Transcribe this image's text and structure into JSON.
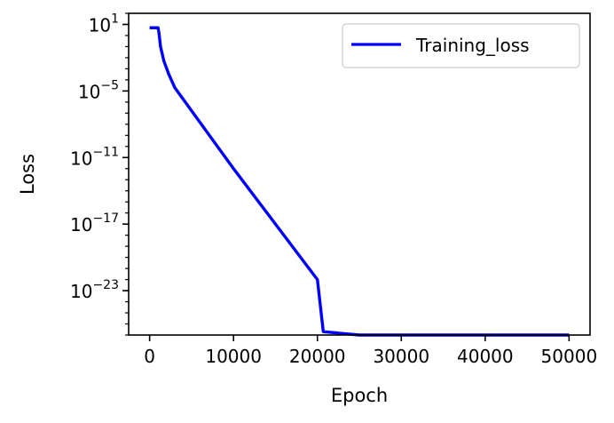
{
  "chart_data": {
    "type": "line",
    "title": "",
    "xlabel": "Epoch",
    "ylabel": "Loss",
    "xlim": [
      -2500,
      52500
    ],
    "ylim": [
      1e-27,
      100
    ],
    "yscale": "log",
    "grid": false,
    "legend_position": "top-right",
    "x_ticks": [
      0,
      10000,
      20000,
      30000,
      40000,
      50000
    ],
    "x_tick_labels": [
      "0",
      "10000",
      "20000",
      "30000",
      "40000",
      "50000"
    ],
    "y_ticks": [
      {
        "value": 10,
        "base": "10",
        "exponent": "1"
      },
      {
        "value": 1e-05,
        "base": "10",
        "exponent": "−5"
      },
      {
        "value": 1e-11,
        "base": "10",
        "exponent": "−11"
      },
      {
        "value": 1e-17,
        "base": "10",
        "exponent": "−17"
      },
      {
        "value": 1e-23,
        "base": "10",
        "exponent": "−23"
      }
    ],
    "series": [
      {
        "name": "Training_loss",
        "color": "#0000ff",
        "x": [
          0,
          1000,
          1100,
          1300,
          1700,
          2300,
          3000,
          10000,
          20000,
          20700,
          25000,
          30000,
          40000,
          50000
        ],
        "y": [
          5,
          5,
          2,
          0.1,
          0.005,
          0.0003,
          2e-05,
          1e-12,
          1e-22,
          2e-27,
          1e-27,
          1e-27,
          1e-27,
          1e-27
        ]
      }
    ]
  }
}
